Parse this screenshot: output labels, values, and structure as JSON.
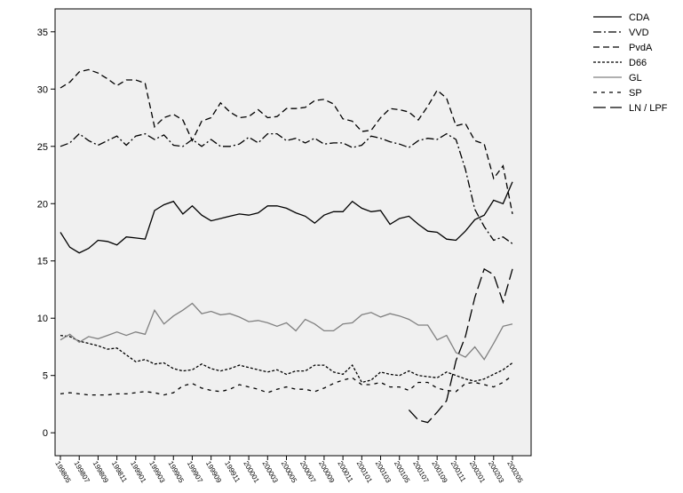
{
  "chart_data": {
    "type": "line",
    "categories": [
      "199805",
      null,
      "199807",
      null,
      "199809",
      null,
      "199811",
      null,
      "199901",
      null,
      "199903",
      null,
      "199905",
      null,
      "199907",
      null,
      "199909",
      null,
      "199911",
      null,
      "200001",
      null,
      "200003",
      null,
      "200005",
      null,
      "200007",
      null,
      "200009",
      null,
      "200011",
      null,
      "200101",
      null,
      "200103",
      null,
      "200105",
      null,
      "200107",
      null,
      "200109",
      null,
      "200111",
      null,
      "200201",
      null,
      "200203",
      null,
      "200205"
    ],
    "ylim": [
      -2,
      37
    ],
    "yticks": [
      0,
      5,
      10,
      15,
      20,
      25,
      30,
      35
    ],
    "legend": "right",
    "series": [
      {
        "name": "CDA",
        "color": "#000000",
        "dash": "none",
        "values": [
          17.5,
          16.2,
          15.7,
          16.1,
          16.8,
          16.7,
          16.4,
          17.1,
          17.0,
          16.9,
          19.4,
          19.9,
          20.2,
          19.1,
          19.8,
          19.0,
          18.5,
          18.7,
          18.9,
          19.1,
          19.0,
          19.2,
          19.8,
          19.8,
          19.6,
          19.2,
          18.9,
          18.3,
          19.0,
          19.3,
          19.3,
          20.2,
          19.6,
          19.3,
          19.4,
          18.2,
          18.7,
          18.9,
          18.2,
          17.6,
          17.5,
          16.9,
          16.8,
          17.6,
          18.6,
          19.0,
          20.3,
          20.0,
          21.9
        ]
      },
      {
        "name": "VVD",
        "color": "#000000",
        "dash": "9,3,2,3",
        "values": [
          25.0,
          25.3,
          26.1,
          25.5,
          25.1,
          25.5,
          25.9,
          25.1,
          25.9,
          26.1,
          25.6,
          26.0,
          25.1,
          25.0,
          25.6,
          25.0,
          25.6,
          25.0,
          25.0,
          25.2,
          25.8,
          25.3,
          26.1,
          26.1,
          25.5,
          25.7,
          25.3,
          25.7,
          25.2,
          25.3,
          25.3,
          24.9,
          25.1,
          25.9,
          25.7,
          25.4,
          25.2,
          24.9,
          25.5,
          25.7,
          25.6,
          26.1,
          25.6,
          23.0,
          19.5,
          18.0,
          16.8,
          17.1,
          16.5
        ]
      },
      {
        "name": "PvdA",
        "color": "#000000",
        "dash": "7,4",
        "values": [
          30.1,
          30.6,
          31.5,
          31.7,
          31.4,
          30.9,
          30.3,
          30.8,
          30.8,
          30.5,
          26.7,
          27.5,
          27.8,
          27.3,
          25.5,
          27.2,
          27.5,
          28.8,
          28.0,
          27.5,
          27.6,
          28.2,
          27.5,
          27.6,
          28.3,
          28.3,
          28.4,
          29.0,
          29.1,
          28.7,
          27.4,
          27.2,
          26.3,
          26.4,
          27.5,
          28.3,
          28.2,
          28.0,
          27.3,
          28.5,
          29.9,
          29.2,
          26.8,
          27.0,
          25.5,
          25.2,
          22.2,
          23.3,
          19.1
        ]
      },
      {
        "name": "D66",
        "color": "#000000",
        "dash": "3,2",
        "values": [
          8.5,
          8.4,
          8.0,
          7.8,
          7.6,
          7.3,
          7.4,
          6.8,
          6.2,
          6.4,
          6.0,
          6.1,
          5.6,
          5.4,
          5.5,
          6.0,
          5.6,
          5.4,
          5.6,
          5.9,
          5.7,
          5.5,
          5.3,
          5.5,
          5.1,
          5.4,
          5.4,
          5.9,
          5.9,
          5.3,
          5.1,
          5.9,
          4.4,
          4.6,
          5.3,
          5.1,
          5.0,
          5.4,
          5.0,
          4.9,
          4.8,
          5.3,
          5.0,
          4.7,
          4.5,
          4.7,
          5.1,
          5.5,
          6.1
        ]
      },
      {
        "name": "GL",
        "color": "#808080",
        "dash": "none",
        "values": [
          8.1,
          8.6,
          7.9,
          8.4,
          8.2,
          8.5,
          8.8,
          8.5,
          8.8,
          8.6,
          10.7,
          9.5,
          10.2,
          10.7,
          11.3,
          10.4,
          10.6,
          10.3,
          10.4,
          10.1,
          9.7,
          9.8,
          9.6,
          9.3,
          9.6,
          8.9,
          9.9,
          9.5,
          8.9,
          8.9,
          9.5,
          9.6,
          10.3,
          10.5,
          10.1,
          10.4,
          10.2,
          9.9,
          9.4,
          9.4,
          8.1,
          8.5,
          7.0,
          6.6,
          7.5,
          6.4,
          7.8,
          9.3,
          9.5
        ]
      },
      {
        "name": "SP",
        "color": "#000000",
        "dash": "4,5",
        "values": [
          3.4,
          3.5,
          3.4,
          3.3,
          3.3,
          3.3,
          3.4,
          3.4,
          3.5,
          3.6,
          3.5,
          3.3,
          3.5,
          4.1,
          4.3,
          3.9,
          3.7,
          3.6,
          3.8,
          4.2,
          4.0,
          3.8,
          3.5,
          3.8,
          4.0,
          3.8,
          3.8,
          3.6,
          3.9,
          4.3,
          4.6,
          4.8,
          4.2,
          4.2,
          4.4,
          4.0,
          4.0,
          3.7,
          4.4,
          4.4,
          3.9,
          3.7,
          3.6,
          4.3,
          4.4,
          4.2,
          4.0,
          4.4,
          5.0
        ]
      },
      {
        "name": "LN / LPF",
        "color": "#000000",
        "dash": "14,5",
        "values": [
          null,
          null,
          null,
          null,
          null,
          null,
          null,
          null,
          null,
          null,
          null,
          null,
          null,
          null,
          null,
          null,
          null,
          null,
          null,
          null,
          null,
          null,
          null,
          null,
          null,
          null,
          null,
          null,
          null,
          null,
          null,
          null,
          null,
          null,
          null,
          null,
          null,
          2.0,
          1.1,
          0.9,
          1.8,
          2.8,
          6.3,
          8.4,
          11.8,
          14.3,
          13.8,
          11.4,
          14.3
        ]
      }
    ]
  }
}
